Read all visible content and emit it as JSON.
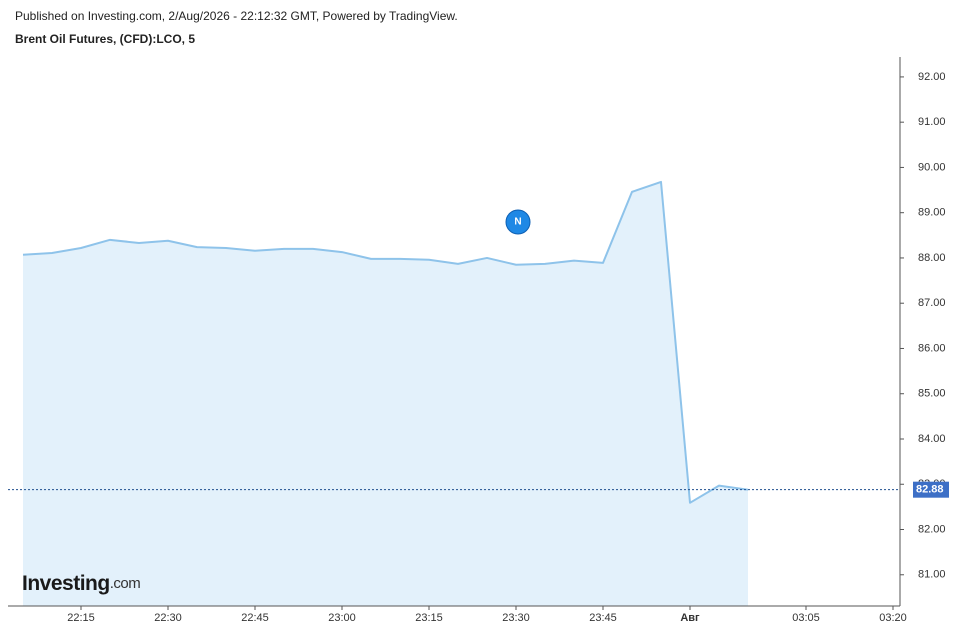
{
  "chart_data": {
    "type": "area",
    "published": "Published on Investing.com, 2/Aug/2026 - 22:12:32 GMT, Powered by TradingView.",
    "title": "Brent Oil Futures, (CFD):LCO, 5",
    "logo": "Investing",
    "logo_suffix": ".com",
    "news_marker": "N",
    "categories": [
      null,
      null,
      "22:15",
      null,
      null,
      "22:30",
      null,
      null,
      "22:45",
      null,
      null,
      "23:00",
      null,
      null,
      "23:15",
      null,
      null,
      "23:30",
      null,
      null,
      "23:45",
      null,
      null,
      "Авг",
      null,
      null,
      null,
      "03:05",
      null,
      null,
      "03:20"
    ],
    "series": [
      {
        "name": "LCO",
        "color": "#8ec3ea",
        "fill": "#e3f1fb",
        "values": [
          88.07,
          88.11,
          88.22,
          88.4,
          88.33,
          88.38,
          88.24,
          88.22,
          88.16,
          88.2,
          88.2,
          88.13,
          87.98,
          87.98,
          87.96,
          87.87,
          88.0,
          87.85,
          87.87,
          87.94,
          87.89,
          89.46,
          89.68,
          82.59,
          82.97,
          82.88,
          null,
          null,
          null,
          null,
          null
        ]
      }
    ],
    "last_price": 82.88,
    "last_price_color": "#3d6fc6",
    "ylim": [
      80.31,
      92.44
    ],
    "yticks": [
      {
        "value": 81,
        "label": "81.00"
      },
      {
        "value": 82,
        "label": "82.00"
      },
      {
        "value": 83,
        "label": "83.00"
      },
      {
        "value": 84,
        "label": "84.00"
      },
      {
        "value": 85,
        "label": "85.00"
      },
      {
        "value": 86,
        "label": "86.00"
      },
      {
        "value": 87,
        "label": "87.00"
      },
      {
        "value": 88,
        "label": "88.00"
      },
      {
        "value": 89,
        "label": "89.00"
      },
      {
        "value": 90,
        "label": "90.00"
      },
      {
        "value": 91,
        "label": "91.00"
      },
      {
        "value": 92,
        "label": "92.00"
      }
    ],
    "grid": false
  }
}
